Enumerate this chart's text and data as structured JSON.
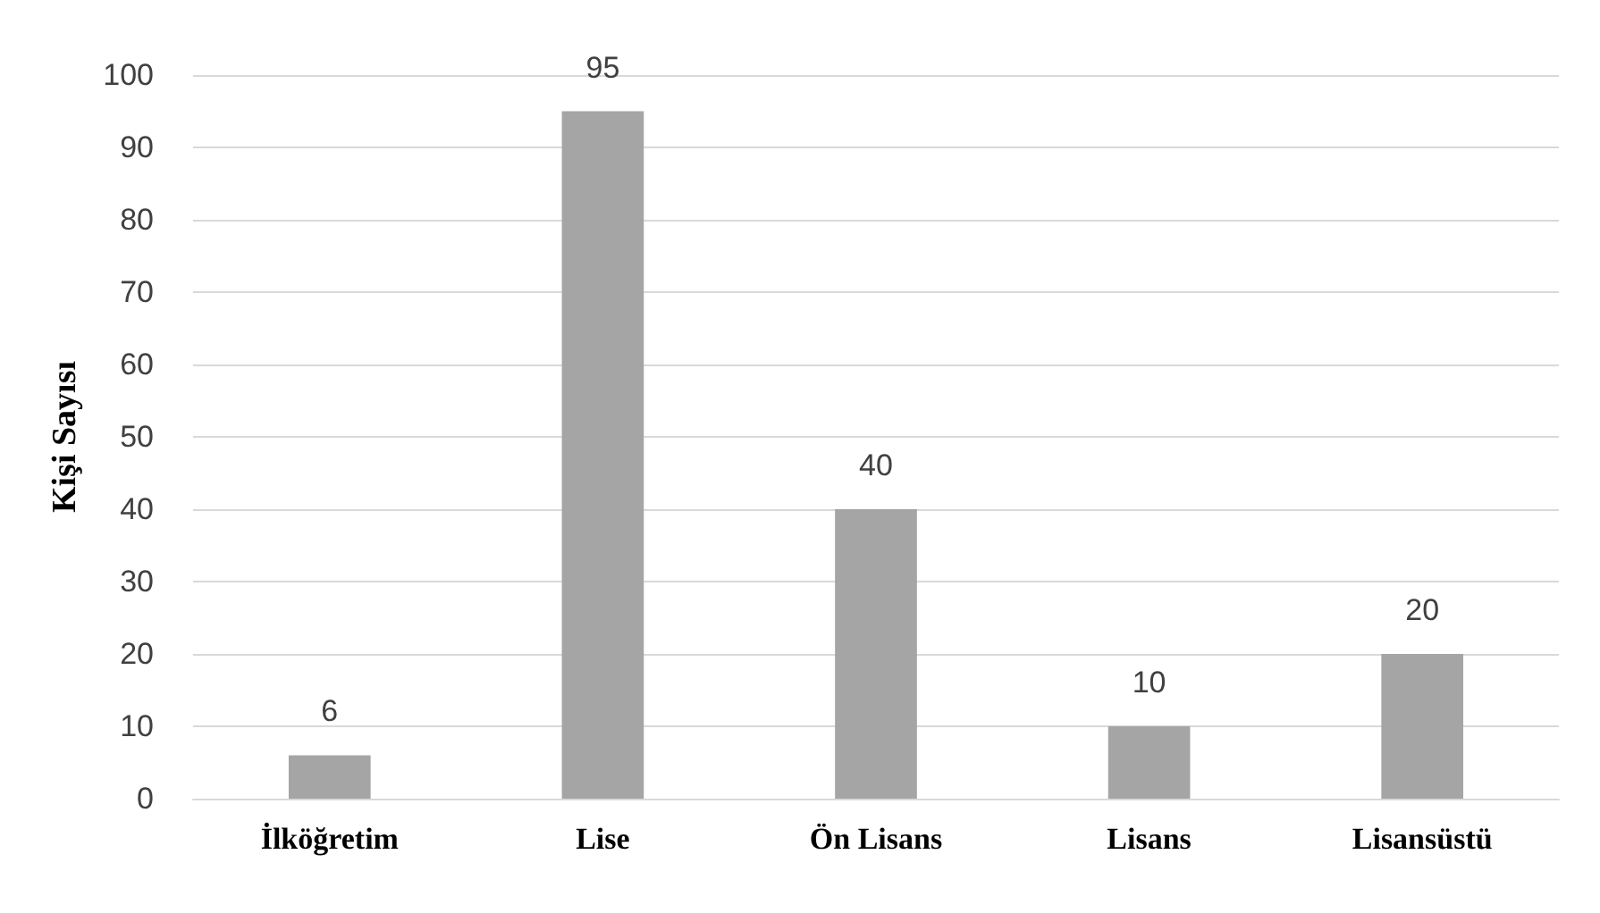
{
  "chart_data": {
    "type": "bar",
    "ylabel": "Kişi Sayısı",
    "categories": [
      "İlköğretim",
      "Lise",
      "Ön Lisans",
      "Lisans",
      "Lisansüstü"
    ],
    "values": [
      6,
      95,
      40,
      10,
      20
    ],
    "color": "#a5a5a5",
    "ylim": [
      0,
      100
    ],
    "yticks": [
      0,
      10,
      20,
      30,
      40,
      50,
      60,
      70,
      80,
      90,
      100
    ],
    "grid": "y",
    "data_labels": true
  }
}
